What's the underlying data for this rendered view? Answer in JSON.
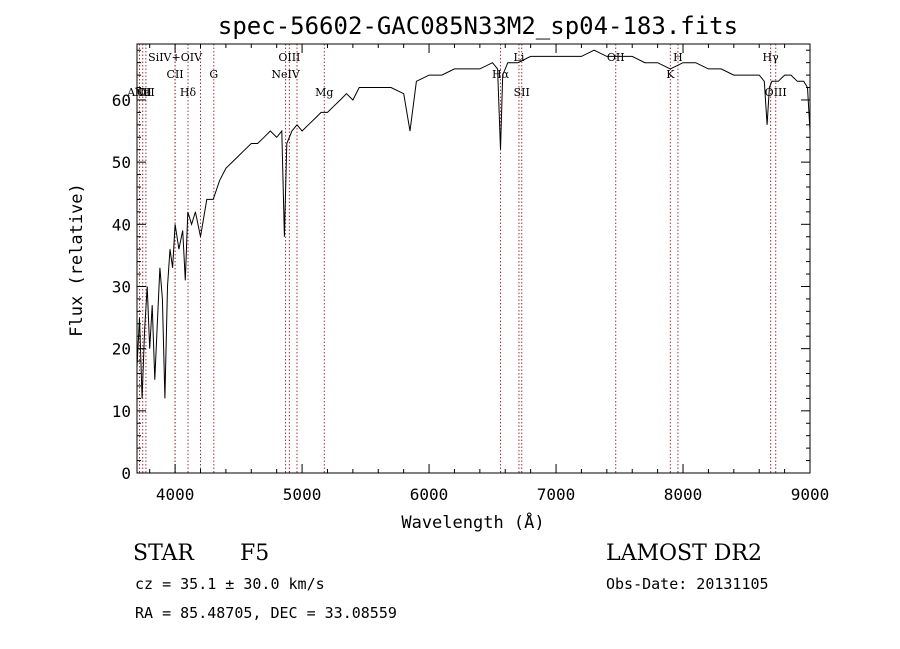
{
  "chart_data": {
    "type": "line",
    "title": "spec-56602-GAC085N33M2_sp04-183.fits",
    "xlabel": "Wavelength (Å)",
    "ylabel": "Flux (relative)",
    "xlim": [
      3700,
      9000
    ],
    "ylim": [
      0,
      69
    ],
    "xticks": [
      4000,
      5000,
      6000,
      7000,
      8000,
      9000
    ],
    "yticks": [
      0,
      10,
      20,
      30,
      40,
      50,
      60
    ],
    "grid": false,
    "series": [
      {
        "x": [
          3700,
          3720,
          3740,
          3760,
          3780,
          3800,
          3820,
          3840,
          3860,
          3880,
          3900,
          3920,
          3940,
          3960,
          3980,
          4000,
          4030,
          4060,
          4080,
          4100,
          4130,
          4160,
          4200,
          4250,
          4300,
          4350,
          4400,
          4450,
          4500,
          4550,
          4600,
          4650,
          4700,
          4750,
          4800,
          4840,
          4861,
          4880,
          4920,
          4960,
          5000,
          5050,
          5100,
          5150,
          5200,
          5250,
          5300,
          5350,
          5400,
          5450,
          5500,
          5600,
          5700,
          5800,
          5850,
          5900,
          6000,
          6100,
          6200,
          6300,
          6400,
          6500,
          6540,
          6563,
          6580,
          6620,
          6700,
          6800,
          6900,
          7000,
          7100,
          7200,
          7300,
          7400,
          7500,
          7600,
          7700,
          7800,
          7900,
          8000,
          8100,
          8200,
          8300,
          8400,
          8500,
          8600,
          8640,
          8662,
          8680,
          8700,
          8750,
          8800,
          8850,
          8900,
          8950,
          8980,
          9000
        ],
        "y": [
          17,
          25,
          12,
          23,
          30,
          20,
          27,
          15,
          24,
          33,
          28,
          12,
          30,
          36,
          33,
          40,
          36,
          39,
          31,
          42,
          40,
          42,
          38,
          44,
          44,
          47,
          49,
          50,
          51,
          52,
          53,
          53,
          54,
          55,
          54,
          55,
          38,
          53,
          55,
          56,
          55,
          56,
          57,
          58,
          58,
          59,
          60,
          61,
          60,
          62,
          62,
          62,
          62,
          61,
          55,
          63,
          64,
          64,
          65,
          65,
          65,
          66,
          65,
          52,
          64,
          66,
          66,
          67,
          67,
          67,
          67,
          67,
          68,
          67,
          67,
          67,
          66,
          66,
          65,
          66,
          66,
          65,
          65,
          64,
          64,
          64,
          63,
          56,
          62,
          63,
          63,
          64,
          64,
          63,
          63,
          62,
          55
        ]
      }
    ],
    "lines": [
      {
        "label": "AlIII",
        "wl": 3720,
        "level": 3
      },
      {
        "label": "Ne",
        "wl": 3745,
        "level": 3
      },
      {
        "label": "OII",
        "wl": 3770,
        "level": 3
      },
      {
        "label": "SiIV+OIV",
        "wl": 4000,
        "level": 1
      },
      {
        "label": "CII",
        "wl": 4000,
        "level": 2
      },
      {
        "label": "Hδ",
        "wl": 4102,
        "level": 3
      },
      {
        "label": "",
        "wl": 4200,
        "level": 0
      },
      {
        "label": "G",
        "wl": 4305,
        "level": 2
      },
      {
        "label": "OIII",
        "wl": 4900,
        "level": 1
      },
      {
        "label": "NeIV",
        "wl": 4870,
        "level": 2
      },
      {
        "label": "",
        "wl": 4960,
        "level": 0
      },
      {
        "label": "Mg",
        "wl": 5175,
        "level": 3
      },
      {
        "label": "Hα",
        "wl": 6563,
        "level": 2
      },
      {
        "label": "Li",
        "wl": 6708,
        "level": 1
      },
      {
        "label": "SII",
        "wl": 6730,
        "level": 3
      },
      {
        "label": "OII",
        "wl": 7470,
        "level": 1
      },
      {
        "label": "K",
        "wl": 7900,
        "level": 2
      },
      {
        "label": "H",
        "wl": 7960,
        "level": 1
      },
      {
        "label": "Hγ",
        "wl": 8690,
        "level": 1
      },
      {
        "label": "OIII",
        "wl": 8730,
        "level": 3
      }
    ]
  },
  "info": {
    "class_label": "STAR",
    "subclass": "F5",
    "survey": "LAMOST DR2",
    "cz": "cz = 35.1 ± 30.0 km/s",
    "obs_date": "Obs-Date: 20131105",
    "coords": "RA =  85.48705, DEC =  33.08559"
  },
  "colors": {
    "line_markers": "#a0303a",
    "spectrum": "#000000",
    "background": "#ffffff"
  }
}
